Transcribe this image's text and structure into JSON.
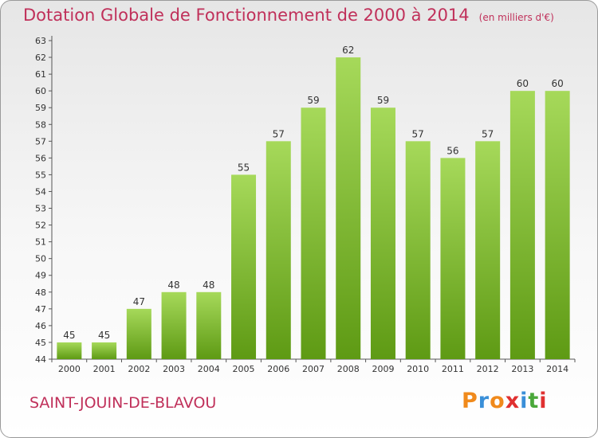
{
  "header": {
    "title": "Dotation Globale de Fonctionnement de 2000 à 2014",
    "unit": "(en milliers d'€)"
  },
  "footer": {
    "commune": "SAINT-JOUIN-DE-BLAVOU",
    "logo_letters": [
      "P",
      "r",
      "o",
      "x",
      "i",
      "t",
      "i"
    ]
  },
  "colors": {
    "title": "#c0305a",
    "bar_light": "#a6d95a",
    "bar_dark": "#5e9a14",
    "logo": [
      "#f08a1c",
      "#3a8fd8",
      "#f08a1c",
      "#e03030",
      "#3a8fd8",
      "#4aa83a",
      "#e03030"
    ]
  },
  "chart_data": {
    "type": "bar",
    "title": "Dotation Globale de Fonctionnement de 2000 à 2014",
    "xlabel": "",
    "ylabel": "",
    "categories": [
      "2000",
      "2001",
      "2002",
      "2003",
      "2004",
      "2005",
      "2006",
      "2007",
      "2008",
      "2009",
      "2010",
      "2011",
      "2012",
      "2013",
      "2014"
    ],
    "values": [
      45,
      45,
      47,
      48,
      48,
      55,
      57,
      59,
      62,
      59,
      57,
      56,
      57,
      60,
      60
    ],
    "ylim": [
      44,
      63
    ],
    "yticks": [
      44,
      45,
      46,
      47,
      48,
      49,
      50,
      51,
      52,
      53,
      54,
      55,
      56,
      57,
      58,
      59,
      60,
      61,
      62,
      63
    ],
    "grid": false
  }
}
